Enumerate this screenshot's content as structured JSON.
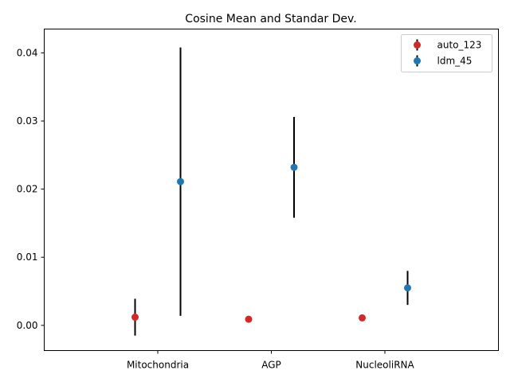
{
  "chart_data": {
    "type": "scatter",
    "title": "Cosine Mean and Standar Dev.",
    "xlabel": "",
    "ylabel": "",
    "categories": [
      "Mitochondria",
      "AGP",
      "NucleoliRNA"
    ],
    "yticks": [
      "0.00",
      "0.01",
      "0.02",
      "0.03",
      "0.04"
    ],
    "ylim": [
      -0.0037,
      0.0435
    ],
    "grid": false,
    "legend_position": "top-right",
    "series": [
      {
        "name": "auto_123",
        "color": "#d62728",
        "means": [
          0.0012,
          0.0009,
          0.0011
        ],
        "std": [
          0.0027,
          0,
          0
        ]
      },
      {
        "name": "ldm_45",
        "color": "#1f77b4",
        "means": [
          0.0211,
          0.0232,
          0.0055
        ],
        "std": [
          0.0197,
          0.0074,
          0.0025
        ]
      }
    ]
  }
}
